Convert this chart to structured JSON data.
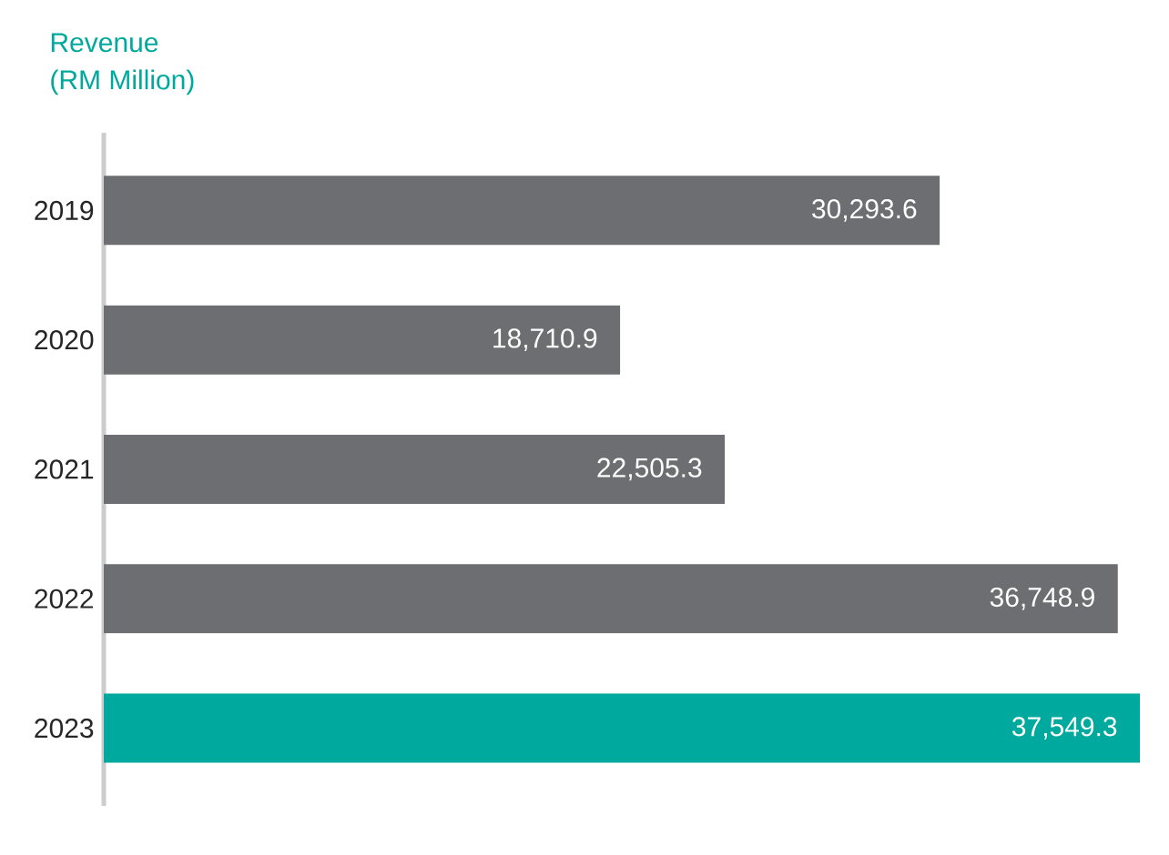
{
  "chart_data": {
    "type": "bar",
    "orientation": "horizontal",
    "title": "Revenue",
    "subtitle": "(RM Million)",
    "categories": [
      "2019",
      "2020",
      "2021",
      "2022",
      "2023"
    ],
    "values": [
      30293.6,
      18710.9,
      22505.3,
      36748.9,
      37549.3
    ],
    "value_labels": [
      "30,293.6",
      "18,710.9",
      "22,505.3",
      "36,748.9",
      "37,549.3"
    ],
    "colors": [
      "#6d6e71",
      "#6d6e71",
      "#6d6e71",
      "#6d6e71",
      "#00a99d"
    ],
    "grid": false
  }
}
